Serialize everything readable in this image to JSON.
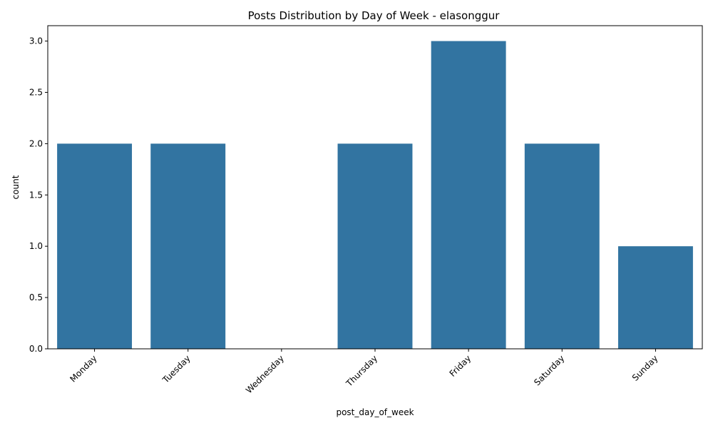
{
  "chart_data": {
    "type": "bar",
    "title": "Posts Distribution by Day of Week - elasonggur",
    "xlabel": "post_day_of_week",
    "ylabel": "count",
    "categories": [
      "Monday",
      "Tuesday",
      "Wednesday",
      "Thursday",
      "Friday",
      "Saturday",
      "Sunday"
    ],
    "values": [
      2,
      2,
      0,
      2,
      3,
      2,
      1
    ],
    "ylim": [
      0,
      3.15
    ],
    "yticks": [
      "0.0",
      "0.5",
      "1.0",
      "1.5",
      "2.0",
      "2.5",
      "3.0"
    ],
    "bar_color": "#3274a1",
    "grid": false,
    "x_tick_rotation_deg": 45
  }
}
